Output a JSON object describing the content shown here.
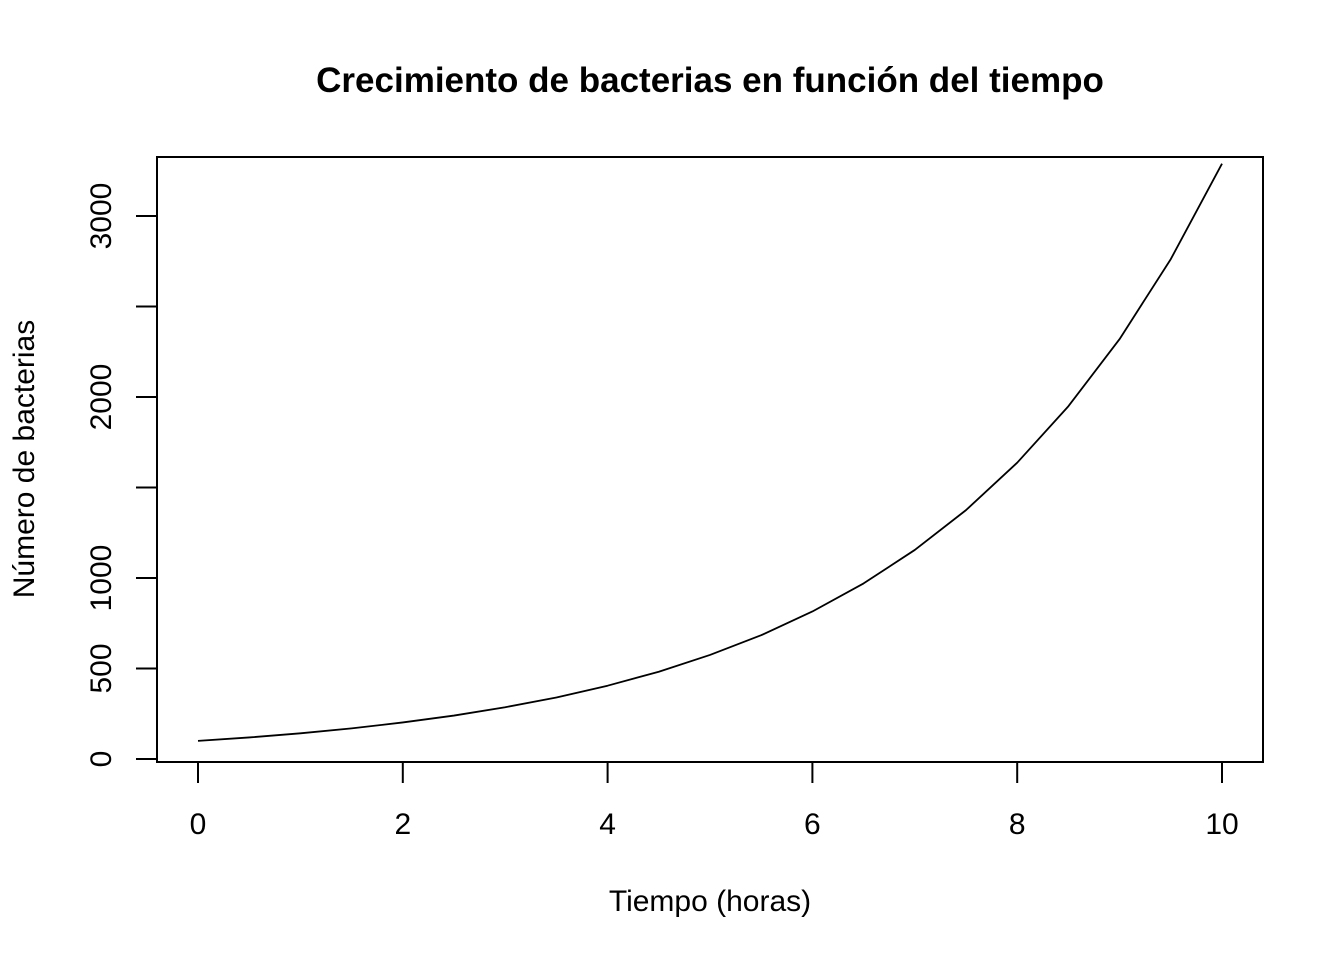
{
  "chart_data": {
    "type": "line",
    "title": "Crecimiento de bacterias en función del tiempo",
    "xlabel": "Tiempo (horas)",
    "ylabel": "Número de bacterias",
    "xlim": [
      0,
      10
    ],
    "ylim": [
      0,
      3300
    ],
    "x_ticks": [
      0,
      2,
      4,
      6,
      8,
      10
    ],
    "x_tick_labels": [
      "0",
      "2",
      "4",
      "6",
      "8",
      "10"
    ],
    "y_ticks": [
      0,
      500,
      1000,
      1500,
      2000,
      2500,
      3000
    ],
    "y_tick_labels": [
      "0",
      "500",
      "1000",
      "",
      "2000",
      "",
      "3000"
    ],
    "grid": false,
    "legend": "none",
    "line_color": "#000000",
    "series": [
      {
        "x": [
          0,
          0.5,
          1,
          1.5,
          2,
          2.5,
          3,
          3.5,
          4,
          4.5,
          5,
          5.5,
          6,
          6.5,
          7,
          7.5,
          8,
          8.5,
          9,
          9.5,
          10
        ],
        "values": [
          100,
          119,
          142,
          169,
          202,
          240,
          286,
          340,
          405,
          482,
          575,
          684,
          815,
          970,
          1155,
          1375,
          1637,
          1949,
          2320,
          2762,
          3289
        ]
      }
    ]
  }
}
